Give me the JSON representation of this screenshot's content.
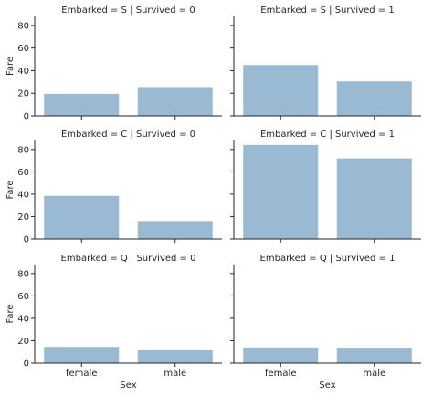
{
  "chart_data": {
    "type": "bar",
    "layout": "facet-grid",
    "xlabel": "Sex",
    "ylabel": "Fare",
    "categories": [
      "female",
      "male"
    ],
    "ylim": [
      0,
      88
    ],
    "yticks": [
      0,
      20,
      40,
      60,
      80
    ],
    "grid": false,
    "colors": {
      "bar": "#9ab9d2",
      "axis": "#262626"
    },
    "panels": [
      {
        "title": "Embarked = S | Survived = 0",
        "values": [
          19.5,
          25.5
        ]
      },
      {
        "title": "Embarked = S | Survived = 1",
        "values": [
          45,
          30.5
        ]
      },
      {
        "title": "Embarked = C | Survived = 0",
        "values": [
          38.5,
          16
        ]
      },
      {
        "title": "Embarked = C | Survived = 1",
        "values": [
          84,
          72
        ]
      },
      {
        "title": "Embarked = Q | Survived = 0",
        "values": [
          14.5,
          11.5
        ]
      },
      {
        "title": "Embarked = Q | Survived = 1",
        "values": [
          14,
          13
        ]
      }
    ]
  }
}
